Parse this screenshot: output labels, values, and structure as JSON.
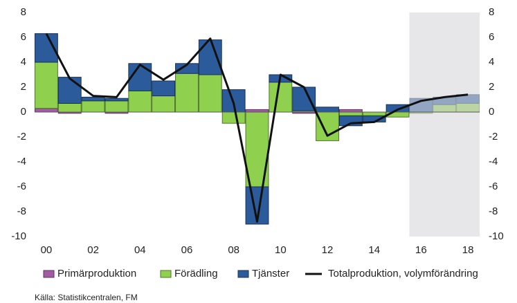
{
  "chart_data": {
    "type": "bar",
    "categories": [
      "00",
      null,
      "02",
      null,
      "04",
      null,
      "06",
      null,
      "08",
      null,
      "10",
      null,
      "12",
      null,
      "14",
      null,
      "16",
      null,
      "18"
    ],
    "series": [
      {
        "name": "Primärproduktion",
        "color": "#a35ca3",
        "values": [
          0.3,
          -0.1,
          0,
          -0.1,
          0,
          0,
          0,
          0,
          0,
          0.2,
          0,
          -0.1,
          0,
          0.2,
          0,
          0,
          0,
          0,
          0
        ]
      },
      {
        "name": "Förädling",
        "color": "#8fd14f",
        "values": [
          3.7,
          0.7,
          0.9,
          0.9,
          1.7,
          1.3,
          3.1,
          3.0,
          -0.9,
          -6.0,
          2.4,
          0.1,
          -2.3,
          -0.3,
          -0.3,
          -0.4,
          -0.1,
          0.6,
          0.7
        ]
      },
      {
        "name": "Tjänster",
        "color": "#2b5b9b",
        "values": [
          2.3,
          2.1,
          0.3,
          0.2,
          2.2,
          1.2,
          0.8,
          2.8,
          1.8,
          -3.0,
          0.6,
          1.9,
          0.4,
          -0.8,
          -0.5,
          0.6,
          1.1,
          0.6,
          0.7
        ]
      },
      {
        "name": "Totalproduktion, volymförändring",
        "type": "line",
        "color": "#111111",
        "values": [
          6.3,
          2.7,
          1.3,
          1.2,
          3.8,
          2.6,
          3.8,
          5.9,
          0.7,
          -8.8,
          3.0,
          2.0,
          -1.9,
          -0.9,
          -0.8,
          0.2,
          0.9,
          1.2,
          1.4
        ]
      }
    ],
    "forecast_from": 16,
    "ylim": [
      -10,
      8
    ],
    "yticks": [
      -10,
      -8,
      -6,
      -4,
      -2,
      0,
      2,
      4,
      6,
      8
    ],
    "y2lim": [
      -10,
      8
    ],
    "y2ticks": [
      -10,
      -8,
      -6,
      -4,
      -2,
      0,
      2,
      4,
      6,
      8
    ],
    "source": "Källa: Statistikcentralen, FM"
  }
}
